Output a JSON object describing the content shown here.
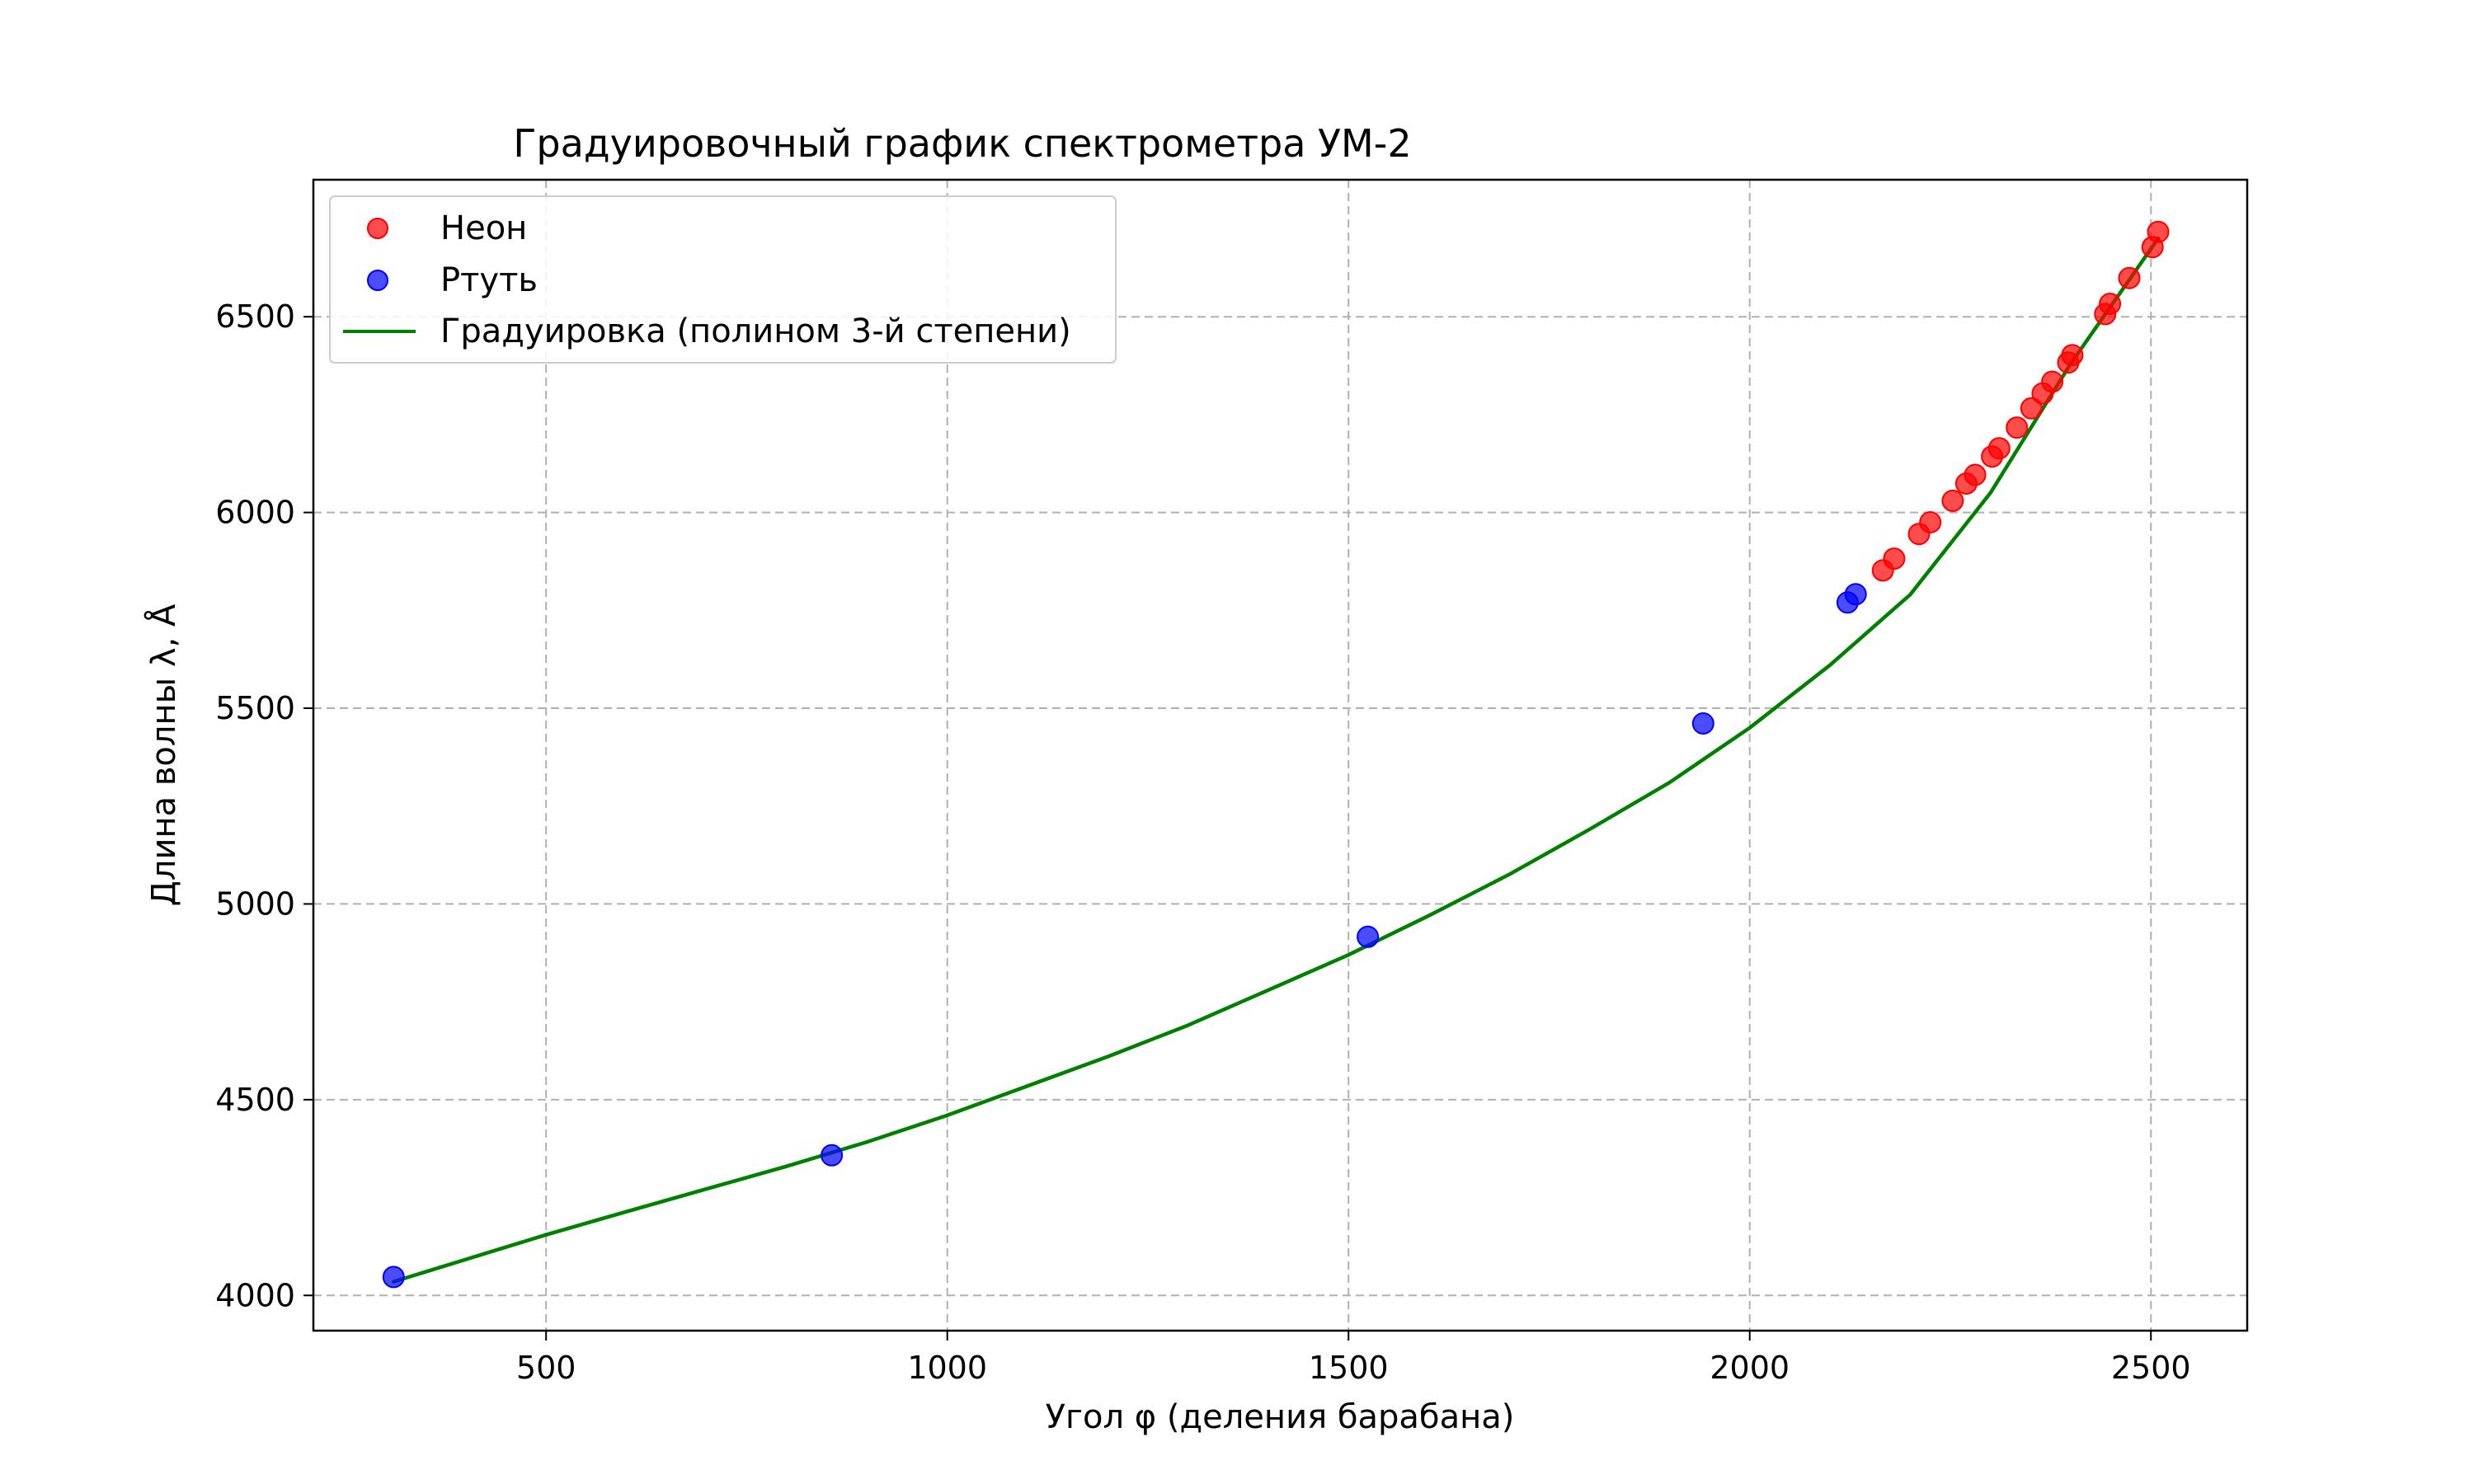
{
  "chart_data": {
    "type": "scatter",
    "title": "Градуировочный график спектрометра УМ-2",
    "xlabel": "Угол φ (деления барабана)",
    "ylabel": "Длина волны λ, Å",
    "xlim": [
      210,
      2620
    ],
    "ylim": [
      3910,
      6850
    ],
    "x_ticks": [
      500,
      1000,
      1500,
      2000,
      2500
    ],
    "y_ticks": [
      4000,
      4500,
      5000,
      5500,
      6000,
      6500
    ],
    "grid": true,
    "legend_position": "top-left",
    "series": [
      {
        "name": "Неон",
        "kind": "scatter",
        "color": "#ff0000",
        "points": [
          [
            2166,
            5852
          ],
          [
            2180,
            5882
          ],
          [
            2211,
            5945
          ],
          [
            2225,
            5975
          ],
          [
            2253,
            6030
          ],
          [
            2270,
            6074
          ],
          [
            2281,
            6096
          ],
          [
            2302,
            6143
          ],
          [
            2311,
            6164
          ],
          [
            2333,
            6217
          ],
          [
            2351,
            6266
          ],
          [
            2365,
            6304
          ],
          [
            2377,
            6334
          ],
          [
            2397,
            6383
          ],
          [
            2402,
            6402
          ],
          [
            2443,
            6507
          ],
          [
            2449,
            6533
          ],
          [
            2473,
            6599
          ],
          [
            2502,
            6678
          ],
          [
            2509,
            6717
          ]
        ]
      },
      {
        "name": "Ртуть",
        "kind": "scatter",
        "color": "#0000ff",
        "points": [
          [
            310,
            4047
          ],
          [
            856,
            4358
          ],
          [
            1524,
            4916
          ],
          [
            1942,
            5461
          ],
          [
            2122,
            5770
          ],
          [
            2132,
            5791
          ]
        ]
      },
      {
        "name": "Градуировка (полином 3-й степени)",
        "kind": "line",
        "color": "#008000",
        "points": [
          [
            310,
            4035
          ],
          [
            400,
            4092
          ],
          [
            500,
            4155
          ],
          [
            600,
            4214
          ],
          [
            700,
            4272
          ],
          [
            800,
            4330
          ],
          [
            900,
            4392
          ],
          [
            1000,
            4460
          ],
          [
            1100,
            4535
          ],
          [
            1200,
            4610
          ],
          [
            1300,
            4690
          ],
          [
            1400,
            4780
          ],
          [
            1500,
            4870
          ],
          [
            1600,
            4970
          ],
          [
            1700,
            5075
          ],
          [
            1800,
            5190
          ],
          [
            1900,
            5310
          ],
          [
            2000,
            5450
          ],
          [
            2100,
            5610
          ],
          [
            2200,
            5790
          ],
          [
            2300,
            6050
          ],
          [
            2400,
            6380
          ],
          [
            2509,
            6700
          ]
        ]
      }
    ]
  }
}
